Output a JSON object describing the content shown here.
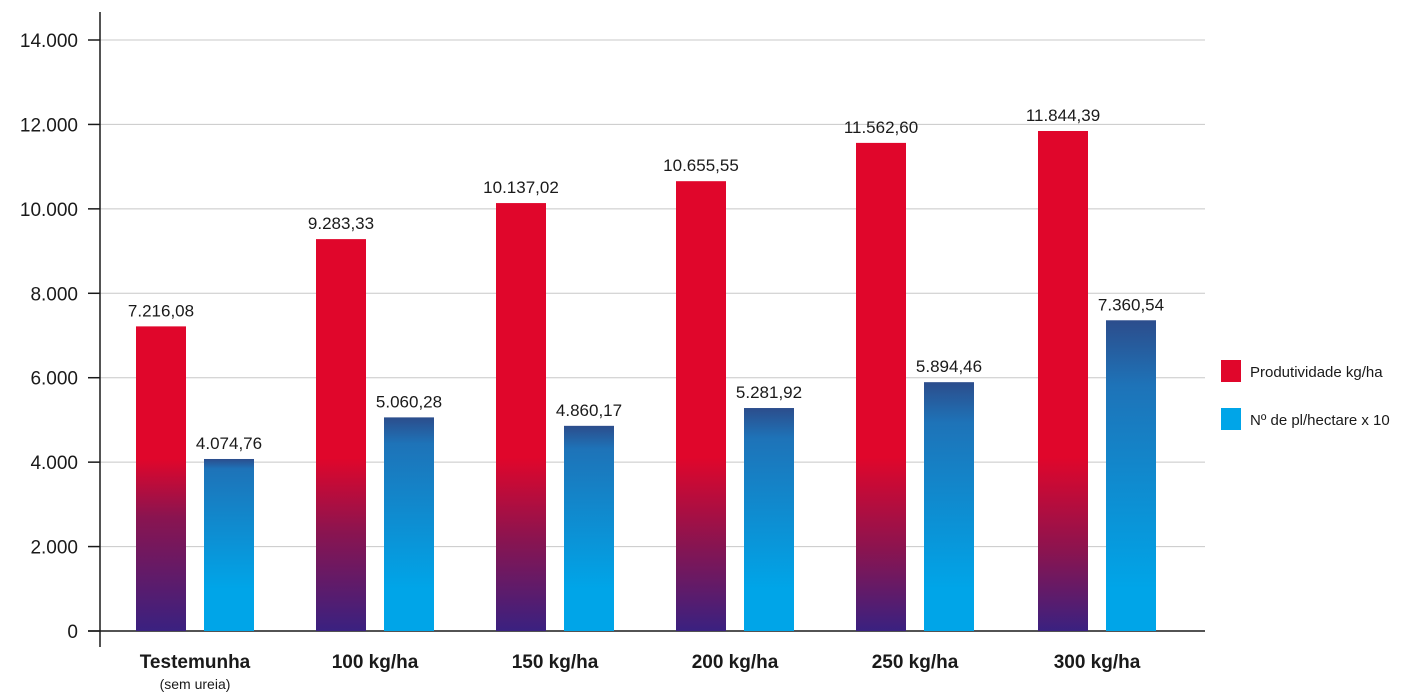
{
  "chart_data": {
    "type": "bar",
    "title": "",
    "xlabel": "",
    "ylabel": "",
    "ylim": [
      0,
      14000
    ],
    "yticks": [
      {
        "value": 0,
        "label": "0"
      },
      {
        "value": 2000,
        "label": "2.000"
      },
      {
        "value": 4000,
        "label": "4.000"
      },
      {
        "value": 6000,
        "label": "6.000"
      },
      {
        "value": 8000,
        "label": "8.000"
      },
      {
        "value": 10000,
        "label": "10.000"
      },
      {
        "value": 12000,
        "label": "12.000"
      },
      {
        "value": 14000,
        "label": "14.000"
      }
    ],
    "grid": true,
    "legend_position": "right",
    "categories": [
      "Testemunha",
      "100 kg/ha",
      "150 kg/ha",
      "200 kg/ha",
      "250 kg/ha",
      "300 kg/ha"
    ],
    "category_sublabels": [
      "(sem ureia)",
      "",
      "",
      "",
      "",
      ""
    ],
    "series": [
      {
        "name": "Produtividade kg/ha",
        "color": "#e0062b",
        "gradient_bottom": "#3a2180",
        "values": [
          7216.08,
          9283.33,
          10137.02,
          10655.55,
          11562.6,
          11844.39
        ],
        "labels": [
          "7.216,08",
          "9.283,33",
          "10.137,02",
          "10.655,55",
          "11.562,60",
          "11.844,39"
        ]
      },
      {
        "name": "Nº de pl/hectare x 10",
        "color": "#00a5e8",
        "gradient_top": "#2c4d8c",
        "values": [
          4074.76,
          5060.28,
          4860.17,
          5281.92,
          5894.46,
          7360.54
        ],
        "labels": [
          "4.074,76",
          "5.060,28",
          "4.860,17",
          "5.281,92",
          "5.894,46",
          "7.360,54"
        ]
      }
    ]
  }
}
